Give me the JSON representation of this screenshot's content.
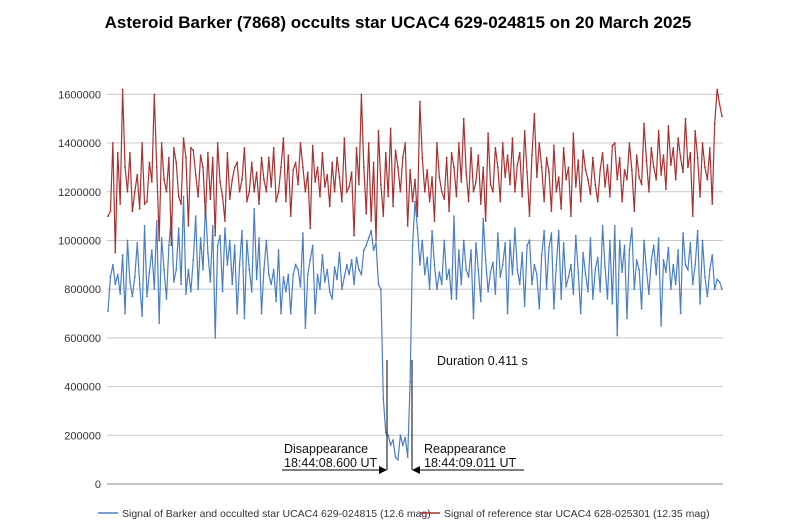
{
  "chart_data": {
    "type": "line",
    "title": "Asteroid Barker (7868) occults star UCAC4 629-024815 on 20 March 2025",
    "xlabel": "",
    "ylabel": "",
    "ylim": [
      0,
      1700000
    ],
    "y_ticks": [
      0,
      200000,
      400000,
      600000,
      800000,
      1000000,
      1200000,
      1400000,
      1600000
    ],
    "y_tick_labels": [
      "0",
      "200000",
      "400000",
      "600000",
      "800000",
      "1000000",
      "1200000",
      "1400000",
      "1600000"
    ],
    "grid": true,
    "legend_position": "bottom",
    "series": [
      {
        "name": "Signal of Barker and occulted star UCAC4 629-024815 (12.6 mag)",
        "color": "#4a7fc1",
        "values": [
          710000,
          850000,
          900000,
          820000,
          860000,
          780000,
          940000,
          700000,
          1000000,
          830000,
          770000,
          850000,
          990000,
          820000,
          690000,
          1060000,
          770000,
          870000,
          960000,
          800000,
          1080000,
          660000,
          1010000,
          880000,
          760000,
          980000,
          1100000,
          830000,
          880000,
          1050000,
          820000,
          1180000,
          780000,
          880000,
          790000,
          920000,
          1100000,
          800000,
          1010000,
          880000,
          1150000,
          950000,
          830000,
          1060000,
          600000,
          980000,
          1020000,
          790000,
          1050000,
          900000,
          1000000,
          820000,
          980000,
          700000,
          900000,
          1040000,
          680000,
          1000000,
          880000,
          790000,
          1130000,
          840000,
          1010000,
          700000,
          880000,
          1000000,
          860000,
          820000,
          880000,
          750000,
          960000,
          700000,
          850000,
          790000,
          860000,
          700000,
          860000,
          900000,
          880000,
          810000,
          1030000,
          640000,
          860000,
          920000,
          980000,
          700000,
          860000,
          800000,
          940000,
          830000,
          880000,
          790000,
          760000,
          890000,
          840000,
          950000,
          800000,
          850000,
          900000,
          860000,
          920000,
          820000,
          930000,
          880000,
          860000,
          960000,
          980000,
          1010000,
          1040000,
          960000,
          990000,
          820000,
          800000,
          350000,
          210000,
          200000,
          160000,
          180000,
          110000,
          100000,
          200000,
          160000,
          190000,
          110000,
          420000,
          980000,
          1160000,
          1050000,
          900000,
          1000000,
          860000,
          930000,
          800000,
          1040000,
          900000,
          800000,
          870000,
          820000,
          1000000,
          840000,
          880000,
          760000,
          1100000,
          760000,
          960000,
          820000,
          1000000,
          880000,
          850000,
          960000,
          680000,
          990000,
          880000,
          750000,
          1090000,
          920000,
          790000,
          870000,
          910000,
          780000,
          1030000,
          850000,
          900000,
          990000,
          700000,
          1000000,
          860000,
          1050000,
          880000,
          820000,
          950000,
          730000,
          980000,
          1000000,
          820000,
          900000,
          860000,
          720000,
          940000,
          1040000,
          800000,
          970000,
          1030000,
          720000,
          900000,
          1040000,
          760000,
          990000,
          810000,
          850000,
          900000,
          780000,
          1020000,
          870000,
          700000,
          950000,
          860000,
          790000,
          1010000,
          760000,
          880000,
          930000,
          790000,
          1060000,
          890000,
          760000,
          1000000,
          740000,
          1060000,
          610000,
          1000000,
          870000,
          980000,
          680000,
          960000,
          1050000,
          800000,
          920000,
          880000,
          720000,
          1000000,
          880000,
          780000,
          920000,
          980000,
          860000,
          1010000,
          650000,
          920000,
          870000,
          970000,
          800000,
          900000,
          820000,
          960000,
          700000,
          1030000,
          900000,
          880000,
          990000,
          820000,
          900000,
          1040000,
          740000,
          1000000,
          850000,
          770000,
          880000,
          940000,
          800000,
          840000,
          830000,
          800000
        ]
      },
      {
        "name": "Signal of reference star UCAC4 628-025301 (12.35 mag)",
        "color": "#a83232",
        "values": [
          1100000,
          1120000,
          1400000,
          950000,
          1360000,
          1150000,
          1620000,
          1300000,
          1200000,
          1360000,
          1120000,
          1200000,
          1270000,
          1130000,
          1400000,
          1150000,
          1160000,
          1320000,
          1240000,
          1600000,
          1300000,
          1000000,
          1400000,
          1250000,
          1200000,
          1340000,
          980000,
          1380000,
          1320000,
          1180000,
          1150000,
          1420000,
          1340000,
          1060000,
          1380000,
          1370000,
          1270000,
          1180000,
          1350000,
          1300000,
          1100000,
          1360000,
          1170000,
          1340000,
          1020000,
          1400000,
          1240000,
          1180000,
          1080000,
          1360000,
          1170000,
          1250000,
          1300000,
          1320000,
          1200000,
          1250000,
          1380000,
          1160000,
          1200000,
          1320000,
          1200000,
          1280000,
          1150000,
          1340000,
          1250000,
          1200000,
          1340000,
          1220000,
          1380000,
          1160000,
          1200000,
          1300000,
          1420000,
          1160000,
          1350000,
          1100000,
          1290000,
          1320000,
          1230000,
          1400000,
          1300000,
          1200000,
          1280000,
          1050000,
          1390000,
          1240000,
          1300000,
          1180000,
          1360000,
          1220000,
          1270000,
          1140000,
          1320000,
          1200000,
          1340000,
          1260000,
          1160000,
          1420000,
          1200000,
          1220000,
          1280000,
          1020000,
          1380000,
          1230000,
          1600000,
          1300000,
          1110000,
          1400000,
          1080000,
          1320000,
          1000000,
          1450000,
          1230000,
          1100000,
          1360000,
          1180000,
          1460000,
          1140000,
          1370000,
          1300000,
          1200000,
          1340000,
          1400000,
          1060000,
          1290000,
          1160000,
          1250000,
          1100000,
          1570000,
          1340000,
          1200000,
          1290000,
          1160000,
          1260000,
          1080000,
          1400000,
          1260000,
          1200000,
          1170000,
          1340000,
          1120000,
          1360000,
          1300000,
          1180000,
          1400000,
          1240000,
          1500000,
          1280000,
          1160000,
          1380000,
          1200000,
          1240000,
          1350000,
          1150000,
          1300000,
          1080000,
          1440000,
          1230000,
          1200000,
          1380000,
          1300000,
          1160000,
          1400000,
          1260000,
          1350000,
          1230000,
          1420000,
          1200000,
          1310000,
          1360000,
          1180000,
          1450000,
          1280000,
          1100000,
          1350000,
          1520000,
          1260000,
          1400000,
          1300000,
          1160000,
          1340000,
          1280000,
          1120000,
          1390000,
          1200000,
          1260000,
          1130000,
          1380000,
          1250000,
          1300000,
          1100000,
          1440000,
          1220000,
          1330000,
          1160000,
          1370000,
          1290000,
          1250000,
          1190000,
          1340000,
          1230000,
          1160000,
          1290000,
          1360000,
          1220000,
          1310000,
          1180000,
          1390000,
          1400000,
          1250000,
          1340000,
          1160000,
          1290000,
          1250000,
          1400000,
          1290000,
          1120000,
          1350000,
          1260000,
          1230000,
          1480000,
          1330000,
          1200000,
          1380000,
          1300000,
          1250000,
          1450000,
          1270000,
          1350000,
          1210000,
          1470000,
          1310000,
          1380000,
          1250000,
          1420000,
          1340000,
          1280000,
          1500000,
          1300000,
          1360000,
          1100000,
          1450000,
          1340000,
          1180000,
          1400000,
          1300000,
          1250000,
          1380000,
          1150000,
          1480000,
          1620000,
          1560000,
          1510000
        ]
      }
    ],
    "annotations": {
      "disappearance": {
        "label": "Disappearance",
        "time": "18:44:08.600 UT"
      },
      "reappearance": {
        "label": "Reappearance",
        "time": "18:44:09.011 UT"
      },
      "duration": "Duration 0.411 s"
    }
  }
}
